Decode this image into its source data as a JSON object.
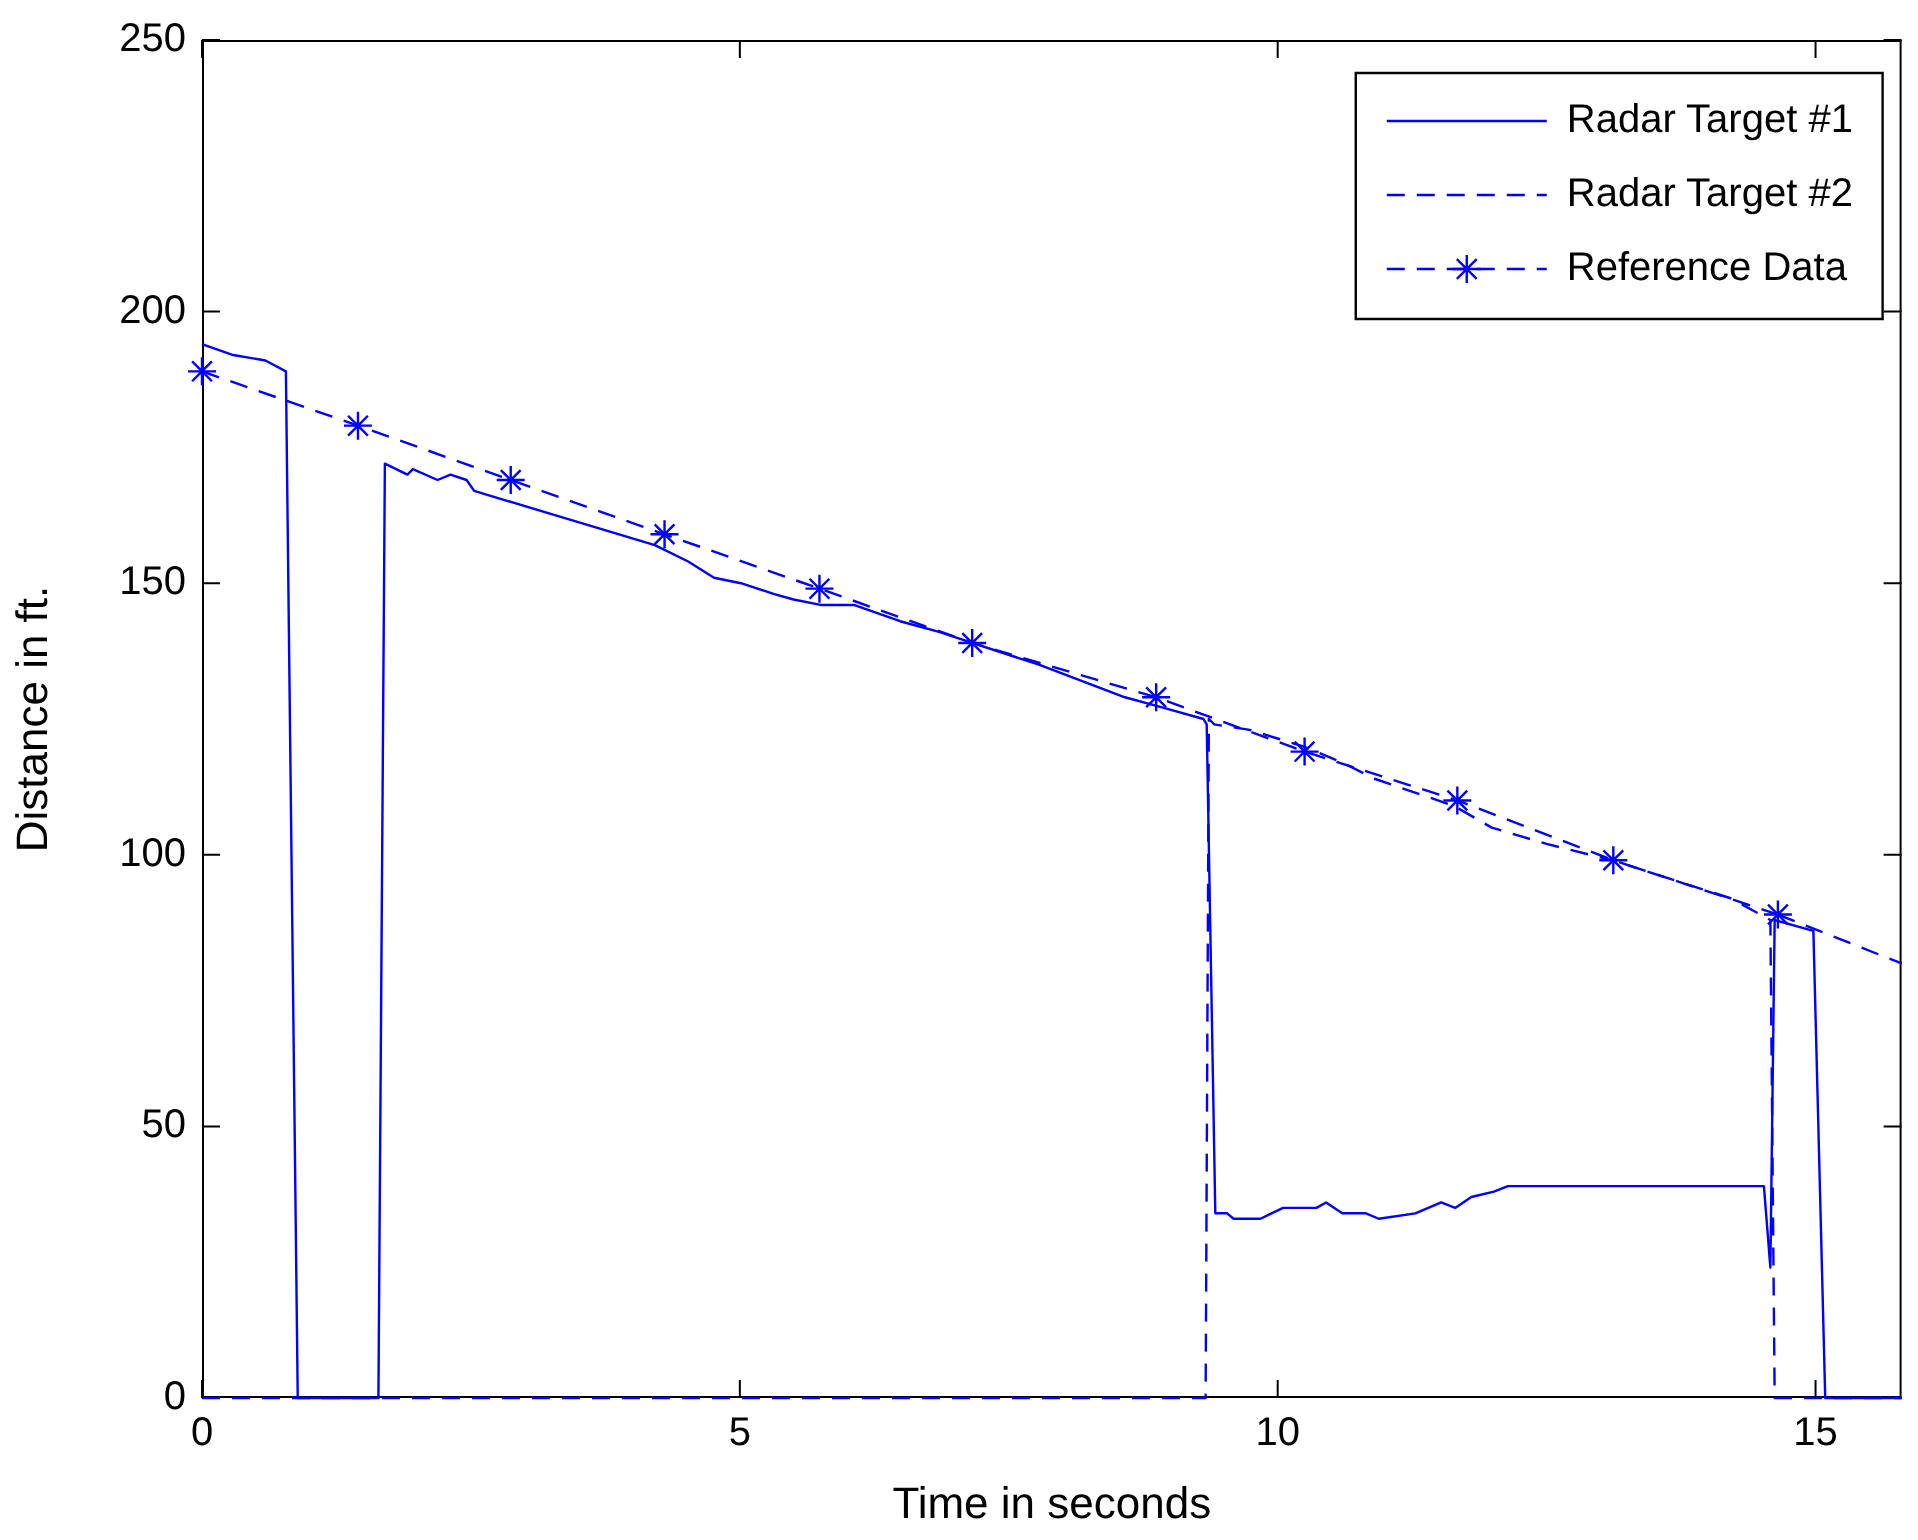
{
  "chart_data": {
    "type": "line",
    "xlabel": "Time in seconds",
    "ylabel": "Distance in ft.",
    "xlim": [
      0,
      15.8
    ],
    "xticks": [
      0,
      5,
      10,
      15
    ],
    "ylim": [
      0,
      250
    ],
    "yticks": [
      0,
      50,
      100,
      150,
      200,
      250
    ],
    "grid": false,
    "legend": "top right",
    "series": [
      {
        "name": "Radar Target #1",
        "color": "#0000ff",
        "line_style": "solid",
        "marker": "none",
        "x": [
          0,
          0.29,
          0.59,
          0.78,
          0.89,
          1.64,
          1.7,
          1.91,
          1.96,
          2.19,
          2.31,
          2.46,
          2.53,
          4.21,
          4.52,
          4.76,
          5.01,
          5.32,
          5.5,
          5.75,
          6.06,
          6.49,
          6.86,
          7.16,
          7.78,
          8.58,
          8.95,
          9.31,
          9.34,
          9.42,
          9.53,
          9.59,
          9.84,
          10.05,
          10.36,
          10.45,
          10.6,
          10.82,
          10.94,
          11.28,
          11.52,
          11.65,
          11.8,
          12.01,
          12.14,
          12.32,
          12.41,
          12.5,
          12.6,
          14.52,
          14.58,
          14.62,
          14.98,
          15.09,
          15.8
        ],
        "values": [
          194,
          192,
          191,
          189,
          0,
          0,
          172,
          170,
          171,
          169,
          170,
          169,
          167,
          157,
          154,
          151,
          150,
          148,
          147,
          146,
          146,
          143,
          141,
          139,
          135,
          129,
          127,
          125,
          124,
          34,
          34,
          33,
          33,
          35,
          35,
          36,
          34,
          34,
          33,
          34,
          36,
          35,
          37,
          38,
          39,
          39,
          39,
          39,
          39,
          39,
          24,
          88,
          86,
          0,
          0
        ]
      },
      {
        "name": "Radar Target #2",
        "color": "#0000ff",
        "line_style": "dashed",
        "marker": "none",
        "x": [
          0,
          9.33,
          9.36,
          9.41,
          9.74,
          10.23,
          10.6,
          10.9,
          11.64,
          11.99,
          12.5,
          13.11,
          14.21,
          14.58,
          14.62,
          15.8
        ],
        "values": [
          0,
          0,
          125,
          124,
          123,
          120,
          117,
          114,
          109,
          105,
          102,
          99,
          92,
          88,
          0,
          0
        ]
      },
      {
        "name": "Reference Data",
        "color": "#0000ff",
        "line_style": "dashed",
        "marker": "cross",
        "x": [
          0,
          1.45,
          2.87,
          4.3,
          5.74,
          7.16,
          8.87,
          10.25,
          11.67,
          13.12,
          14.65
        ],
        "values": [
          189,
          179,
          169,
          159,
          149,
          139,
          129,
          119,
          110,
          99,
          89
        ]
      },
      {
        "color": "#0000ff",
        "line_style": "dashed",
        "marker": "none",
        "x": [
          14.65,
          15.8
        ],
        "values": [
          89,
          80
        ]
      }
    ]
  }
}
